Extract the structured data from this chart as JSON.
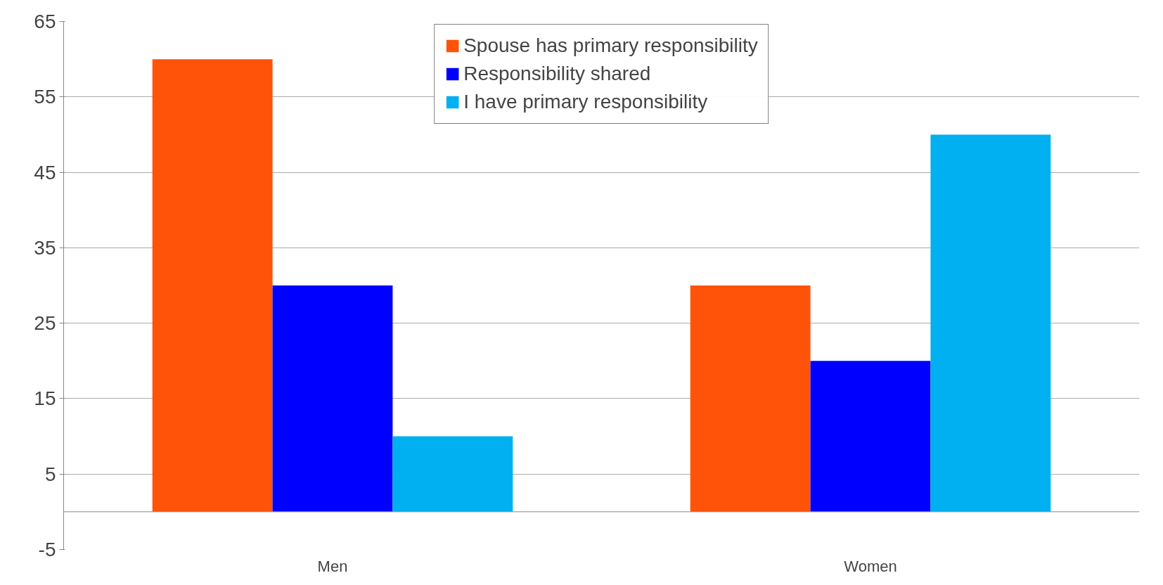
{
  "chart_data": {
    "type": "bar",
    "categories": [
      "Men",
      "Women"
    ],
    "series": [
      {
        "name": "Spouse has primary responsibility",
        "color": "#ff5309",
        "values": [
          60,
          30
        ]
      },
      {
        "name": "Responsibility shared",
        "color": "#0000ff",
        "values": [
          30,
          20
        ]
      },
      {
        "name": "I have primary responsibility",
        "color": "#00b0f0",
        "values": [
          10,
          50
        ]
      }
    ],
    "ylim": [
      -5,
      65
    ],
    "yticks": [
      -5,
      5,
      15,
      25,
      35,
      45,
      55,
      65
    ],
    "grid": "y",
    "legend": "top"
  }
}
